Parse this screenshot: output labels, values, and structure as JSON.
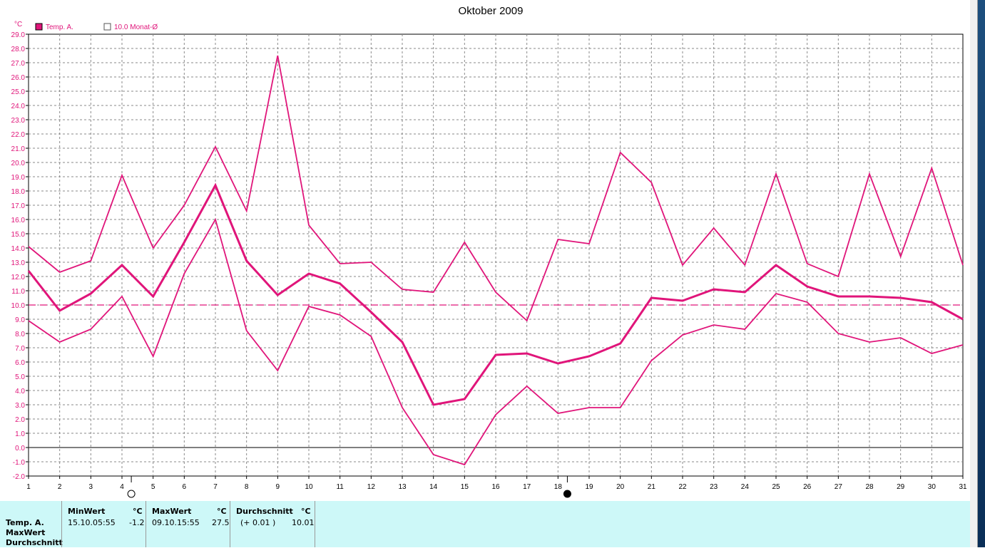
{
  "chart_data": {
    "type": "line",
    "title": "Oktober 2009",
    "ylabel": "°C",
    "ylim": [
      -2.0,
      29.0
    ],
    "y_tick_step": 1.0,
    "x": [
      1,
      2,
      3,
      4,
      5,
      6,
      7,
      8,
      9,
      10,
      11,
      12,
      13,
      14,
      15,
      16,
      17,
      18,
      19,
      20,
      21,
      22,
      23,
      24,
      25,
      26,
      27,
      28,
      29,
      30,
      31
    ],
    "grid": true,
    "legend": [
      {
        "label": "Temp. A.",
        "marker": "filled-square"
      },
      {
        "label": "10.0 Monat-Ø",
        "marker": "hollow-square"
      }
    ],
    "reference_line": {
      "value": 10.0,
      "style": "dashed"
    },
    "series": [
      {
        "name": "Temp. A.",
        "role": "max",
        "values": [
          14.1,
          12.3,
          13.1,
          19.1,
          14.0,
          17.0,
          21.1,
          16.6,
          27.5,
          15.6,
          12.9,
          13.0,
          11.1,
          10.9,
          14.4,
          10.9,
          8.9,
          14.6,
          14.3,
          20.7,
          18.6,
          12.8,
          15.4,
          12.8,
          19.2,
          12.9,
          12.0,
          19.2,
          13.4,
          19.6,
          12.8
        ]
      },
      {
        "name": "Temp. A.",
        "role": "mean",
        "values": [
          12.4,
          9.6,
          10.8,
          12.8,
          10.6,
          14.4,
          18.4,
          13.1,
          10.7,
          12.2,
          11.5,
          9.5,
          7.4,
          3.0,
          3.4,
          6.5,
          6.6,
          5.9,
          6.4,
          7.3,
          10.5,
          10.3,
          11.1,
          10.9,
          12.8,
          11.3,
          10.6,
          10.6,
          10.5,
          10.2,
          9.0
        ]
      },
      {
        "name": "Temp. A.",
        "role": "min",
        "values": [
          8.9,
          7.4,
          8.3,
          10.6,
          6.4,
          12.2,
          16.0,
          8.2,
          5.4,
          9.9,
          9.3,
          7.8,
          2.8,
          -0.5,
          -1.2,
          2.3,
          4.3,
          2.4,
          2.8,
          2.8,
          6.1,
          7.9,
          8.6,
          8.3,
          10.8,
          10.2,
          8.0,
          7.4,
          7.7,
          6.6,
          7.2
        ]
      }
    ],
    "moon_phases": [
      {
        "day": 4.3,
        "phase": "full-moon"
      },
      {
        "day": 18.3,
        "phase": "new-moon"
      }
    ]
  },
  "colors": {
    "series": "#e0157a",
    "grid": "#8a8a8a",
    "axis": "#000000",
    "summary_bg": "#cdf8f8"
  },
  "summary": {
    "row_labels": [
      "Temp. A.",
      "MaxWert",
      "Durchschnitt"
    ],
    "minwert": {
      "header": "MinWert",
      "unit": "°C",
      "date": "15.10.",
      "time": "05:55",
      "value": "-1.2"
    },
    "maxwert": {
      "header": "MaxWert",
      "unit": "°C",
      "date": "09.10.",
      "time": "15:55",
      "value": "27.5"
    },
    "durchschnitt": {
      "header": "Durchschnitt",
      "unit": "°C",
      "delta": "(+ 0.01 )",
      "value": "10.01"
    }
  }
}
